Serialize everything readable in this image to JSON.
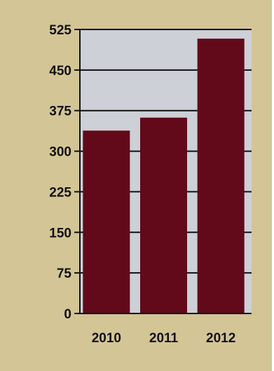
{
  "chart_data": {
    "type": "bar",
    "categories": [
      "2010",
      "2011",
      "2012"
    ],
    "values": [
      338,
      362,
      508
    ],
    "title": "",
    "xlabel": "",
    "ylabel": "",
    "ylim": [
      0,
      525
    ],
    "yticks": [
      "0",
      "75",
      "150",
      "225",
      "300",
      "375",
      "450",
      "525"
    ],
    "grid": true,
    "legend": "none",
    "colors": {
      "background": "#d4c596",
      "plot_area": "#cdd0d6",
      "bar": "#620a1a",
      "axis": "#111111"
    }
  }
}
